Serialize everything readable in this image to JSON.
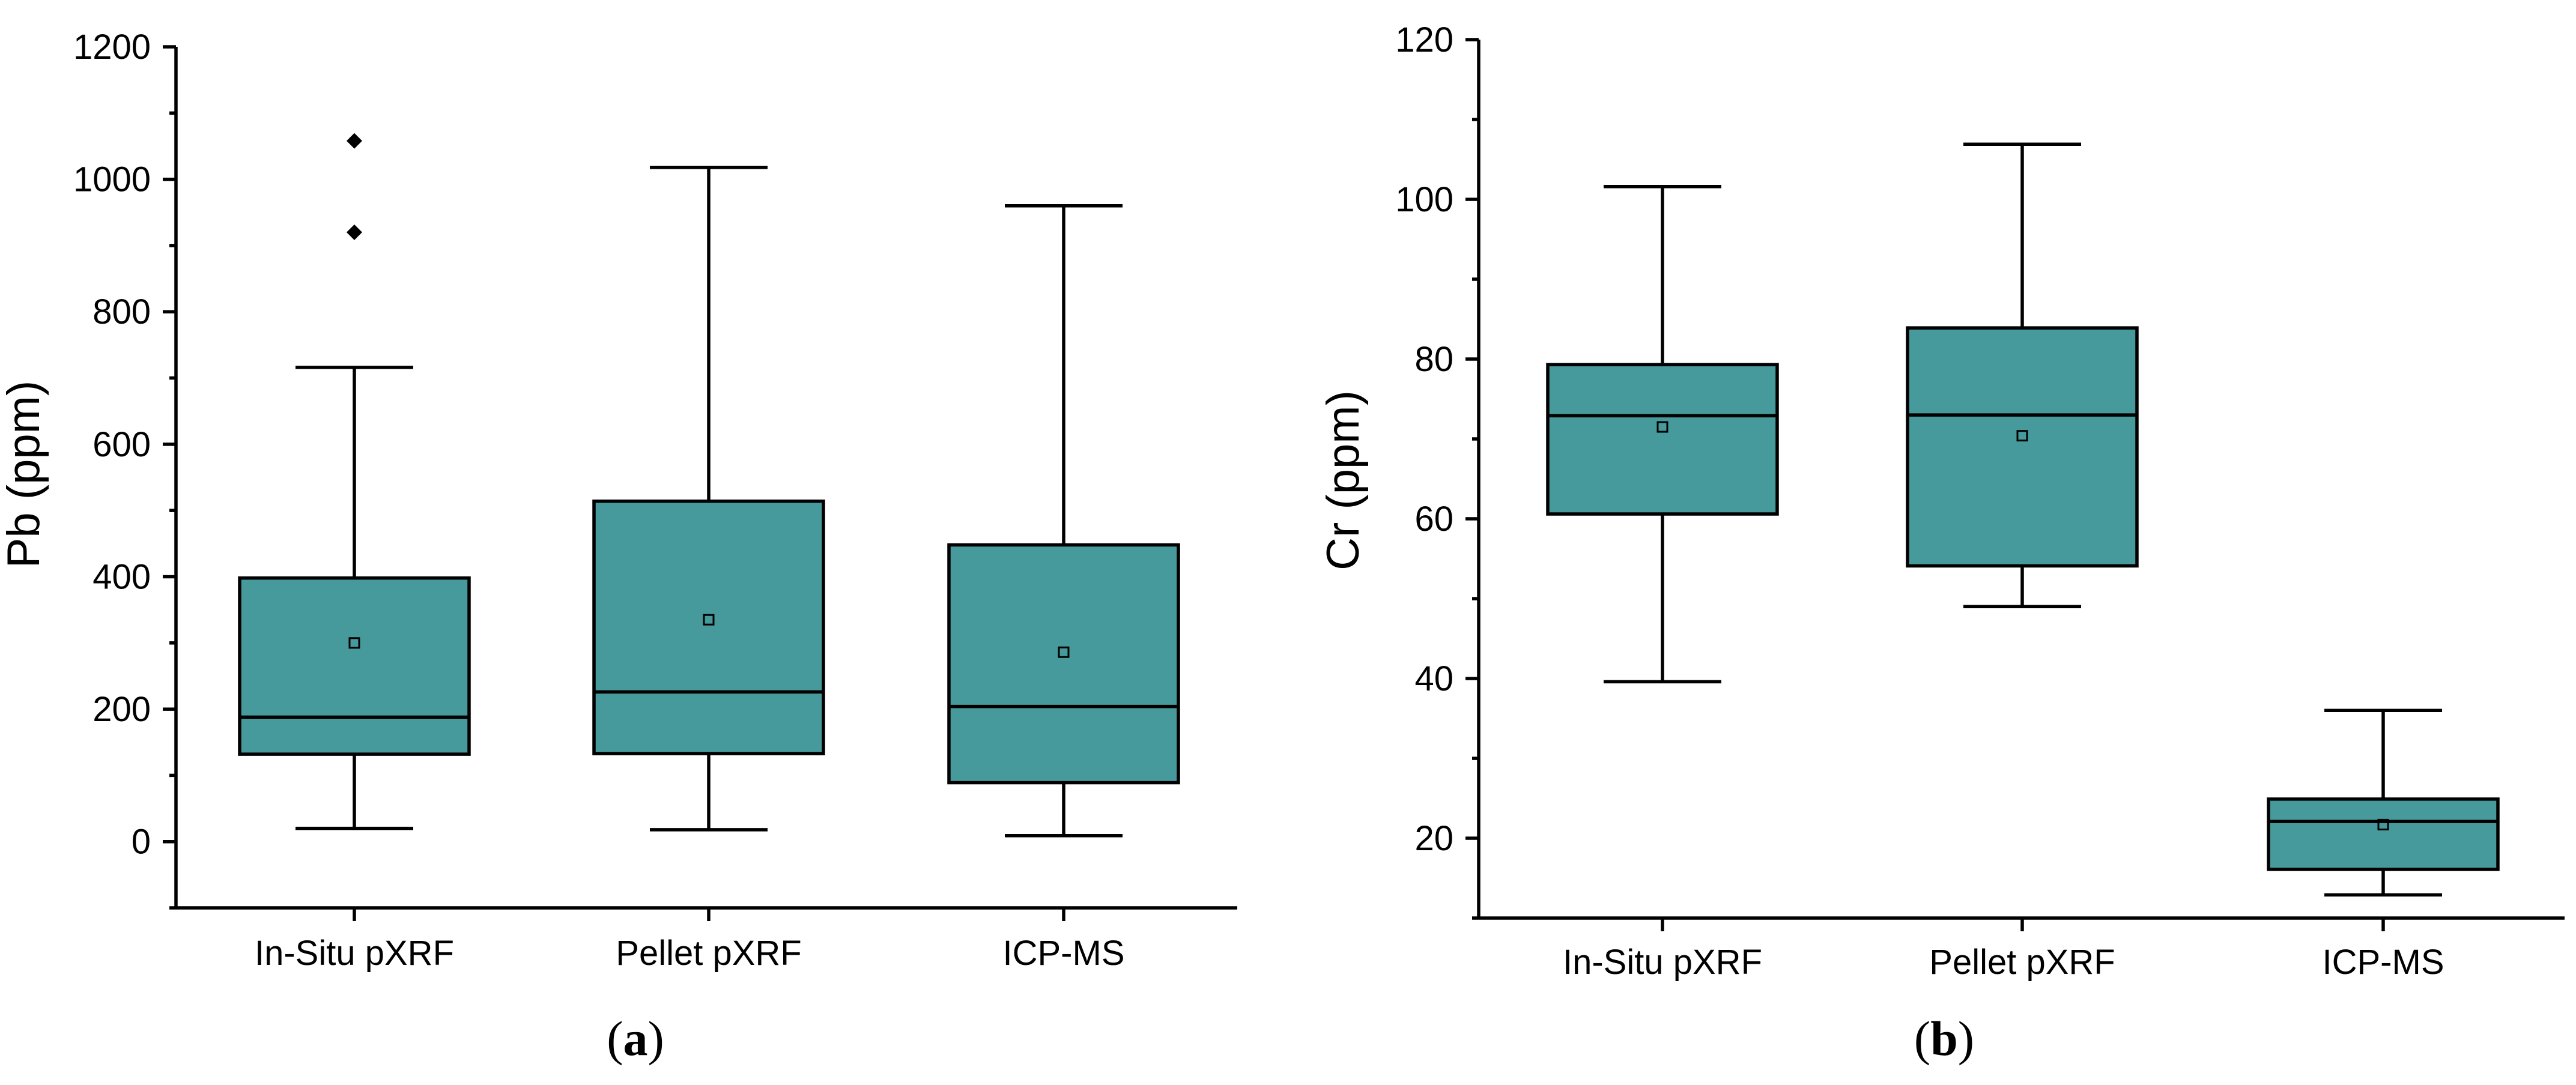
{
  "colors": {
    "box_fill": "#469a9c",
    "stroke": "#000000"
  },
  "chart_data": [
    {
      "id": "a",
      "type": "box",
      "panel_label": "a",
      "ylabel": "Pb (ppm)",
      "xlabel": "",
      "ylim": [
        -100,
        1200
      ],
      "yticks": [
        0,
        200,
        400,
        600,
        800,
        1000,
        1200
      ],
      "ytick_labels": [
        "0",
        "200",
        "400",
        "600",
        "800",
        "1000",
        "1200"
      ],
      "categories": [
        "In-Situ pXRF",
        "Pellet pXRF",
        "ICP-MS"
      ],
      "series": [
        {
          "name": "In-Situ pXRF",
          "whisker_low": 20,
          "q1": 132,
          "median": 188,
          "q3": 398,
          "whisker_high": 716,
          "mean": 300,
          "outliers": [
            920,
            1058
          ]
        },
        {
          "name": "Pellet pXRF",
          "whisker_low": 18,
          "q1": 133,
          "median": 226,
          "q3": 514,
          "whisker_high": 1018,
          "mean": 335,
          "outliers": []
        },
        {
          "name": "ICP-MS",
          "whisker_low": 9,
          "q1": 89,
          "median": 204,
          "q3": 448,
          "whisker_high": 960,
          "mean": 286,
          "outliers": []
        }
      ]
    },
    {
      "id": "b",
      "type": "box",
      "panel_label": "b",
      "ylabel": "Cr (ppm)",
      "xlabel": "",
      "ylim": [
        10,
        120
      ],
      "yticks": [
        20,
        40,
        60,
        80,
        100,
        120
      ],
      "ytick_labels": [
        "20",
        "40",
        "60",
        "80",
        "100",
        "120"
      ],
      "categories": [
        "In-Situ pXRF",
        "Pellet pXRF",
        "ICP-MS"
      ],
      "series": [
        {
          "name": "In-Situ pXRF",
          "whisker_low": 39.6,
          "q1": 60.6,
          "median": 72.9,
          "q3": 79.3,
          "whisker_high": 101.6,
          "mean": 71.5,
          "outliers": []
        },
        {
          "name": "Pellet pXRF",
          "whisker_low": 49,
          "q1": 54.1,
          "median": 73,
          "q3": 83.9,
          "whisker_high": 106.9,
          "mean": 70.4,
          "outliers": []
        },
        {
          "name": "ICP-MS",
          "whisker_low": 12.9,
          "q1": 16.1,
          "median": 22.1,
          "q3": 24.9,
          "whisker_high": 36,
          "mean": 21.7,
          "outliers": []
        }
      ]
    }
  ]
}
